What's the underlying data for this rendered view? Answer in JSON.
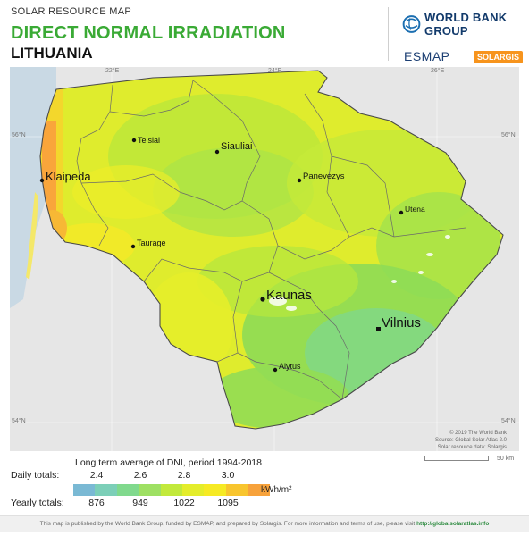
{
  "header": {
    "kicker": "SOLAR RESOURCE MAP",
    "title": "DIRECT NORMAL IRRADIATION",
    "country": "LITHUANIA",
    "logos": {
      "wbg": "WORLD BANK GROUP",
      "esmap": "ESMAP",
      "solargis": "SOLARGIS"
    }
  },
  "map": {
    "ticks": {
      "lon_22": "22°E",
      "lon_24": "24°E",
      "lon_26": "26°E",
      "lat_56": "56°N",
      "lat_54": "54°N"
    },
    "cities": {
      "telsiai": "Telsiai",
      "siauliai": "Siauliai",
      "klaipeda": "Klaipeda",
      "panevezys": "Panevezys",
      "utena": "Utena",
      "taurage": "Taurage",
      "kaunas": "Kaunas",
      "vilnius": "Vilnius",
      "alytus": "Alytus"
    },
    "colors": {
      "sea": "#c9d9e4",
      "neighbour": "#e6e6e6",
      "land_base": "#dfec2d",
      "green_light": "#b4e83c",
      "green": "#8edc55",
      "teal": "#7fd4a0",
      "yellow": "#f3ee2c",
      "orange": "#f9a53b",
      "border": "#5a5a5a"
    }
  },
  "credits": {
    "line1": "© 2019 The World Bank",
    "line2": "Source: Global Solar Atlas 2.0",
    "line3": "Solar resource data: Solargis",
    "scalebar": "50 km"
  },
  "legend": {
    "title": "Long term average of DNI, period 1994-2018",
    "daily_label": "Daily totals:",
    "yearly_label": "Yearly totals:",
    "daily_values": [
      "2.4",
      "2.6",
      "2.8",
      "3.0"
    ],
    "yearly_values": [
      "876",
      "949",
      "1022",
      "1095"
    ],
    "unit": "kWh/m²",
    "colors": [
      "#7ab9d4",
      "#7ccfb8",
      "#80d98d",
      "#9ee063",
      "#c2e93b",
      "#e4ed2b",
      "#f6ea24",
      "#f8c52e",
      "#f7a23b"
    ]
  },
  "footer": {
    "text": "This map is published by the World Bank Group, funded by ESMAP, and prepared by Solargis. For more information and terms of use, please visit",
    "link": "http://globalsolaratlas.info"
  }
}
